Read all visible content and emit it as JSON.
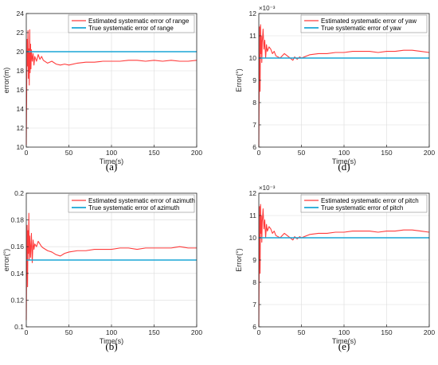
{
  "colors": {
    "estimated": "#ff3b3b",
    "true": "#1aa6d6",
    "grid": "#dcdcdc",
    "axis": "#262626"
  },
  "chart_data": [
    {
      "type": "line",
      "panel_label": "(a)",
      "xlabel": "Time(s)",
      "ylabel": "error(m)",
      "exponent_label": "",
      "xlim": [
        0,
        200
      ],
      "ylim": [
        10,
        24
      ],
      "xticks": [
        0,
        50,
        100,
        150,
        200
      ],
      "yticks": [
        10,
        12,
        14,
        16,
        18,
        20,
        22,
        24
      ],
      "ytick_labels": [
        "10",
        "12",
        "14",
        "16",
        "18",
        "20",
        "22",
        "24"
      ],
      "grid": true,
      "legend_position": "top-right",
      "series": [
        {
          "name": "Estimated systematic error of range",
          "x": [
            0,
            0.5,
            1,
            1.5,
            2,
            2.5,
            3,
            3.5,
            4,
            4.5,
            5,
            5.5,
            6,
            7,
            8,
            9,
            10,
            12,
            14,
            16,
            18,
            20,
            25,
            30,
            35,
            40,
            45,
            50,
            60,
            70,
            80,
            90,
            100,
            110,
            120,
            130,
            140,
            150,
            160,
            170,
            180,
            190,
            200
          ],
          "y": [
            10.2,
            16.0,
            21.3,
            18.5,
            22.2,
            17.2,
            20.3,
            16.5,
            22.3,
            17.8,
            20.8,
            18.2,
            20.2,
            19.0,
            19.8,
            18.6,
            19.5,
            19.0,
            19.7,
            19.2,
            19.5,
            19.1,
            18.8,
            19.0,
            18.7,
            18.6,
            18.7,
            18.6,
            18.8,
            18.9,
            18.9,
            19.0,
            19.0,
            19.0,
            19.1,
            19.1,
            19.0,
            19.1,
            19.0,
            19.1,
            19.0,
            19.0,
            19.1
          ]
        },
        {
          "name": "True systematic error of range",
          "x": [
            0,
            200
          ],
          "y": [
            20,
            20
          ]
        }
      ]
    },
    {
      "type": "line",
      "panel_label": "(d)",
      "xlabel": "Time(s)",
      "ylabel": "Error(°)",
      "exponent_label": "×10⁻³",
      "xlim": [
        0,
        200
      ],
      "ylim": [
        6,
        12
      ],
      "xticks": [
        0,
        50,
        100,
        150,
        200
      ],
      "yticks": [
        6,
        7,
        8,
        9,
        10,
        11,
        12
      ],
      "ytick_labels": [
        "6",
        "7",
        "8",
        "9",
        "10",
        "11",
        "12"
      ],
      "grid": true,
      "legend_position": "top-right",
      "series": [
        {
          "name": "Estimated systematic error of yaw",
          "x": [
            0,
            0.5,
            1,
            1.5,
            2,
            2.5,
            3,
            3.5,
            4,
            5,
            6,
            7,
            8,
            9,
            10,
            12,
            14,
            16,
            18,
            20,
            25,
            30,
            35,
            40,
            42,
            45,
            48,
            50,
            60,
            70,
            80,
            90,
            100,
            110,
            120,
            130,
            140,
            150,
            160,
            170,
            180,
            190,
            200
          ],
          "y": [
            6.0,
            9.0,
            11.4,
            8.5,
            11.5,
            10.2,
            11.0,
            9.8,
            10.7,
            11.3,
            10.4,
            10.8,
            10.0,
            10.6,
            10.3,
            10.5,
            10.4,
            10.2,
            10.3,
            10.1,
            10.0,
            10.2,
            10.05,
            9.9,
            10.05,
            9.95,
            10.05,
            10.0,
            10.15,
            10.2,
            10.2,
            10.25,
            10.25,
            10.3,
            10.3,
            10.3,
            10.25,
            10.3,
            10.3,
            10.35,
            10.35,
            10.3,
            10.25
          ]
        },
        {
          "name": "True systematic error of yaw",
          "x": [
            0,
            200
          ],
          "y": [
            10,
            10
          ]
        }
      ]
    },
    {
      "type": "line",
      "panel_label": "(b)",
      "xlabel": "Time(s)",
      "ylabel": "error(°)",
      "exponent_label": "",
      "xlim": [
        0,
        200
      ],
      "ylim": [
        0.1,
        0.2
      ],
      "xticks": [
        0,
        50,
        100,
        150,
        200
      ],
      "yticks": [
        0.1,
        0.12,
        0.14,
        0.16,
        0.18,
        0.2
      ],
      "ytick_labels": [
        "0.1",
        "0.12",
        "0.14",
        "0.16",
        "0.18",
        "0.2"
      ],
      "grid": true,
      "legend_position": "top-right",
      "series": [
        {
          "name": "Estimated systematic error of azimuth",
          "x": [
            0,
            0.5,
            1,
            1.5,
            2,
            2.5,
            3,
            3.5,
            4,
            5,
            6,
            7,
            8,
            9,
            10,
            12,
            14,
            16,
            18,
            20,
            25,
            30,
            35,
            40,
            45,
            50,
            60,
            70,
            80,
            90,
            100,
            110,
            120,
            130,
            140,
            150,
            160,
            170,
            180,
            190,
            200
          ],
          "y": [
            0.105,
            0.15,
            0.176,
            0.13,
            0.172,
            0.155,
            0.185,
            0.15,
            0.168,
            0.152,
            0.17,
            0.148,
            0.165,
            0.158,
            0.162,
            0.16,
            0.164,
            0.162,
            0.16,
            0.159,
            0.157,
            0.156,
            0.154,
            0.153,
            0.155,
            0.156,
            0.157,
            0.157,
            0.158,
            0.158,
            0.158,
            0.159,
            0.159,
            0.158,
            0.159,
            0.159,
            0.159,
            0.159,
            0.16,
            0.159,
            0.159
          ]
        },
        {
          "name": "True systematic error of azimuth",
          "x": [
            0,
            200
          ],
          "y": [
            0.15,
            0.15
          ]
        }
      ]
    },
    {
      "type": "line",
      "panel_label": "(e)",
      "xlabel": "Time(s)",
      "ylabel": "Error(°)",
      "exponent_label": "×10⁻³",
      "xlim": [
        0,
        200
      ],
      "ylim": [
        6,
        12
      ],
      "xticks": [
        0,
        50,
        100,
        150,
        200
      ],
      "yticks": [
        6,
        7,
        8,
        9,
        10,
        11,
        12
      ],
      "ytick_labels": [
        "6",
        "7",
        "8",
        "9",
        "10",
        "11",
        "12"
      ],
      "grid": true,
      "legend_position": "top-right",
      "series": [
        {
          "name": "Estimated systematic error of pitch",
          "x": [
            0,
            0.5,
            1,
            1.5,
            2,
            2.5,
            3,
            3.5,
            4,
            5,
            6,
            7,
            8,
            9,
            10,
            12,
            14,
            16,
            18,
            20,
            25,
            30,
            35,
            40,
            42,
            45,
            48,
            50,
            60,
            70,
            80,
            90,
            100,
            110,
            120,
            130,
            140,
            150,
            160,
            170,
            180,
            190,
            200
          ],
          "y": [
            6.0,
            9.2,
            11.4,
            8.4,
            11.5,
            10.2,
            11.0,
            9.8,
            10.7,
            11.3,
            10.4,
            10.8,
            10.0,
            10.6,
            10.3,
            10.5,
            10.4,
            10.2,
            10.3,
            10.1,
            10.0,
            10.2,
            10.05,
            9.9,
            10.05,
            9.95,
            10.05,
            10.0,
            10.15,
            10.2,
            10.2,
            10.25,
            10.25,
            10.3,
            10.3,
            10.3,
            10.25,
            10.3,
            10.3,
            10.35,
            10.35,
            10.3,
            10.25
          ]
        },
        {
          "name": "True systematic error of pitch",
          "x": [
            0,
            200
          ],
          "y": [
            10,
            10
          ]
        }
      ]
    }
  ]
}
